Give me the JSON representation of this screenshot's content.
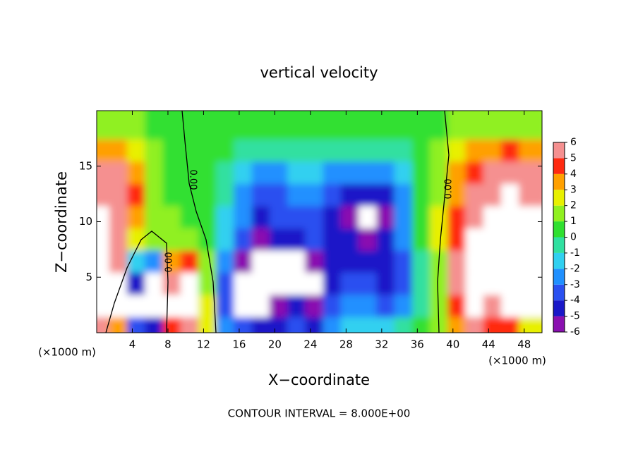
{
  "chart_data": {
    "type": "contour",
    "title": "vertical velocity",
    "xlabel": "X−coordinate",
    "ylabel": "Z−coordinate",
    "x_unit": "(×1000 m)",
    "y_unit": "(×1000 m)",
    "footer": "CONTOUR INTERVAL = 8.000E+00",
    "contour_labels": [
      "0.00",
      "0.00",
      "0.00"
    ],
    "xlim": [
      0,
      50
    ],
    "ylim": [
      0,
      20
    ],
    "xticks": [
      4,
      8,
      12,
      16,
      20,
      24,
      28,
      32,
      36,
      40,
      44,
      48
    ],
    "yticks": [
      5,
      10,
      15
    ],
    "x": [
      1,
      3,
      5,
      7,
      9,
      11,
      13,
      15,
      17,
      19,
      21,
      23,
      25,
      27,
      29,
      31,
      33,
      35,
      37,
      39,
      41,
      43,
      45,
      47,
      49
    ],
    "y": [
      1,
      3,
      5,
      7,
      9,
      11,
      13,
      15,
      17,
      19
    ],
    "z": [
      [
        5,
        3,
        -4,
        -5,
        4,
        5,
        2,
        -3,
        -4,
        -5,
        -5,
        -4,
        -5,
        -3,
        -2,
        -2,
        -2,
        -1,
        0,
        1,
        3,
        5,
        4,
        4,
        2
      ],
      [
        8,
        7,
        -8,
        -7,
        8,
        8,
        2,
        -4,
        -7,
        -8,
        -6,
        -5,
        -6,
        -4,
        -3,
        -3,
        -4,
        -3,
        -1,
        1,
        4,
        8,
        6,
        8,
        7
      ],
      [
        8,
        7,
        -5,
        -7,
        5,
        8,
        1,
        -4,
        -7,
        -8,
        -8,
        -7,
        -8,
        -5,
        -4,
        -4,
        -5,
        -4,
        -1,
        1,
        5,
        8,
        8,
        8,
        8
      ],
      [
        9,
        6,
        -2,
        -3,
        3,
        4,
        1,
        -3,
        -6,
        -8,
        -7,
        -7,
        -6,
        -5,
        -5,
        -5,
        -5,
        -4,
        -1,
        1,
        5,
        8,
        8,
        8,
        8
      ],
      [
        8,
        5,
        2,
        1,
        1,
        1,
        0,
        -2,
        -4,
        -6,
        -5,
        -5,
        -4,
        -5,
        -5,
        -6,
        -5,
        -3,
        0,
        2,
        4,
        8,
        8,
        8,
        8
      ],
      [
        8,
        6,
        3,
        1,
        1,
        0,
        0,
        -2,
        -3,
        -5,
        -4,
        -4,
        -4,
        -5,
        -6,
        -8,
        -6,
        -3,
        0,
        2,
        4,
        6,
        8,
        8,
        8
      ],
      [
        6,
        6,
        4,
        1,
        0,
        0,
        0,
        -1,
        -3,
        -4,
        -4,
        -3,
        -3,
        -4,
        -5,
        -5,
        -5,
        -3,
        0,
        1,
        3,
        5,
        6,
        7,
        6
      ],
      [
        5,
        5,
        3,
        1,
        0,
        0,
        0,
        -1,
        -2,
        -3,
        -3,
        -2,
        -2,
        -3,
        -3,
        -3,
        -3,
        -2,
        0,
        1,
        3,
        4,
        5,
        5,
        5
      ],
      [
        3,
        3,
        2,
        1,
        0,
        0,
        0,
        0,
        -1,
        -1,
        -1,
        -1,
        -1,
        -1,
        -1,
        -1,
        -1,
        -1,
        0,
        1,
        2,
        3,
        3,
        4,
        3
      ],
      [
        1,
        1,
        1,
        0,
        0,
        0,
        0,
        0,
        0,
        0,
        0,
        0,
        0,
        0,
        0,
        0,
        0,
        0,
        0,
        0,
        1,
        1,
        1,
        1,
        1
      ]
    ],
    "colorbar_lim": [
      -6,
      6
    ],
    "colorbar_ticks": [
      -6,
      -5,
      -4,
      -3,
      -2,
      -1,
      0,
      1,
      2,
      3,
      4,
      5,
      6
    ],
    "colors": [
      "#8a10b0",
      "#1a18c8",
      "#2a50f0",
      "#2090ff",
      "#30d0f0",
      "#30e0a0",
      "#30e030",
      "#90f020",
      "#e8f000",
      "#ffa000",
      "#ff2a10",
      "#f59090"
    ],
    "out_of_range_color": "#ffffff"
  }
}
